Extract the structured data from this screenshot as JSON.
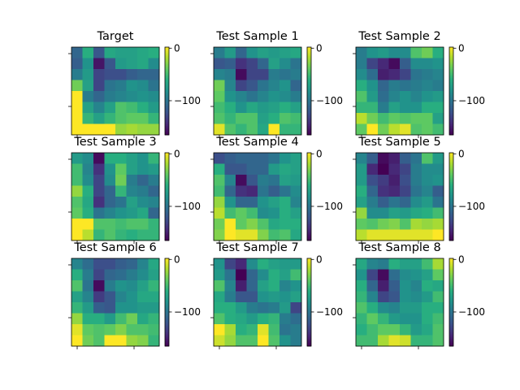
{
  "chart_data": {
    "type": "heatmap",
    "colormap": "viridis",
    "vmin": -165,
    "vmax": 2,
    "colorbar_ticks": [
      0,
      -100
    ],
    "colorbar_tick_labels": [
      "0",
      "−100"
    ],
    "grid": false,
    "panels": [
      {
        "title": "Target",
        "values": [
          [
            -110,
            -60,
            -120,
            -65,
            -70,
            -70,
            -65,
            -60
          ],
          [
            -115,
            -80,
            -155,
            -120,
            -75,
            -70,
            -65,
            -85
          ],
          [
            -95,
            -75,
            -130,
            -125,
            -125,
            -115,
            -110,
            -110
          ],
          [
            -35,
            -70,
            -130,
            -100,
            -95,
            -80,
            -85,
            -100
          ],
          [
            5,
            -95,
            -110,
            -95,
            -90,
            -85,
            -80,
            -85
          ],
          [
            5,
            -70,
            -90,
            -70,
            -45,
            -50,
            -60,
            -75
          ],
          [
            5,
            -55,
            -70,
            -55,
            -45,
            -40,
            -40,
            -55
          ],
          [
            5,
            5,
            5,
            5,
            -25,
            -20,
            -25,
            -25
          ]
        ]
      },
      {
        "title": "Test Sample 1",
        "values": [
          [
            -95,
            -75,
            -110,
            -80,
            -70,
            -75,
            -70,
            -65
          ],
          [
            -120,
            -115,
            -140,
            -130,
            -110,
            -70,
            -85,
            -100
          ],
          [
            -90,
            -95,
            -160,
            -130,
            -130,
            -95,
            -100,
            -95
          ],
          [
            -35,
            -90,
            -130,
            -120,
            -100,
            -90,
            -80,
            -110
          ],
          [
            -40,
            -80,
            -90,
            -100,
            -90,
            -80,
            -85,
            -95
          ],
          [
            -50,
            -60,
            -80,
            -65,
            -75,
            -70,
            -60,
            -70
          ],
          [
            -45,
            -55,
            -45,
            -45,
            -70,
            -60,
            -45,
            -50
          ],
          [
            -5,
            -45,
            -55,
            -45,
            -65,
            5,
            -55,
            -55
          ]
        ]
      },
      {
        "title": "Test Sample 2",
        "values": [
          [
            -95,
            -80,
            -75,
            -85,
            -85,
            -45,
            -35,
            -60
          ],
          [
            -95,
            -130,
            -145,
            -160,
            -115,
            -85,
            -85,
            -80
          ],
          [
            -85,
            -105,
            -150,
            -145,
            -130,
            -100,
            -95,
            -90
          ],
          [
            -60,
            -80,
            -110,
            -95,
            -100,
            -95,
            -90,
            -95
          ],
          [
            -45,
            -75,
            -105,
            -90,
            -80,
            -90,
            -80,
            -75
          ],
          [
            -55,
            -55,
            -95,
            -70,
            -80,
            -80,
            -60,
            -60
          ],
          [
            -15,
            -35,
            -50,
            -40,
            -45,
            -40,
            -40,
            -70
          ],
          [
            -40,
            5,
            -35,
            -15,
            -5,
            -45,
            -40,
            -50
          ]
        ]
      },
      {
        "title": "Test Sample 3",
        "values": [
          [
            -75,
            -85,
            -160,
            -60,
            -60,
            -70,
            -80,
            -55
          ],
          [
            -50,
            -90,
            -140,
            -80,
            -40,
            -70,
            -80,
            -75
          ],
          [
            -50,
            -85,
            -130,
            -85,
            -35,
            -95,
            -110,
            -95
          ],
          [
            -25,
            -60,
            -130,
            -110,
            -55,
            -90,
            -95,
            -110
          ],
          [
            -45,
            -65,
            -140,
            -110,
            -100,
            -70,
            -85,
            -90
          ],
          [
            -40,
            -60,
            -100,
            -90,
            -80,
            -75,
            -65,
            -110
          ],
          [
            5,
            5,
            -45,
            -45,
            -50,
            -45,
            -45,
            -55
          ],
          [
            5,
            -15,
            -55,
            -45,
            -55,
            -60,
            -55,
            -55
          ]
        ]
      },
      {
        "title": "Test Sample 4",
        "values": [
          [
            -125,
            -115,
            -110,
            -110,
            -110,
            -100,
            -80,
            -70
          ],
          [
            -60,
            -120,
            -120,
            -110,
            -110,
            -75,
            -65,
            -70
          ],
          [
            -45,
            -90,
            -160,
            -120,
            -95,
            -100,
            -70,
            -75
          ],
          [
            -50,
            -110,
            -140,
            -145,
            -100,
            -115,
            -100,
            -85
          ],
          [
            -25,
            -80,
            -110,
            -110,
            -80,
            -70,
            -60,
            -90
          ],
          [
            -15,
            -50,
            -40,
            -50,
            -85,
            -80,
            -60,
            -70
          ],
          [
            -35,
            5,
            -40,
            -30,
            -45,
            -65,
            -60,
            -60
          ],
          [
            -30,
            5,
            -5,
            -5,
            -30,
            -50,
            -45,
            -65
          ]
        ]
      },
      {
        "title": "Test Sample 5",
        "values": [
          [
            -90,
            -115,
            -160,
            -150,
            -115,
            -100,
            -45,
            -75
          ],
          [
            -75,
            -145,
            -165,
            -145,
            -130,
            -95,
            -85,
            -85
          ],
          [
            -75,
            -125,
            -135,
            -150,
            -125,
            -95,
            -85,
            -80
          ],
          [
            -60,
            -110,
            -140,
            -145,
            -130,
            -100,
            -90,
            -115
          ],
          [
            -70,
            -95,
            -115,
            -100,
            -110,
            -85,
            -75,
            -100
          ],
          [
            -25,
            -85,
            -85,
            -70,
            -75,
            -65,
            -60,
            -50
          ],
          [
            -40,
            -45,
            -35,
            -30,
            -45,
            -20,
            -25,
            -20
          ],
          [
            -15,
            -5,
            -5,
            -5,
            -5,
            -5,
            -5,
            5
          ]
        ]
      },
      {
        "title": "Test Sample 6",
        "values": [
          [
            -90,
            -105,
            -125,
            -125,
            -115,
            -110,
            -90,
            -65
          ],
          [
            -60,
            -95,
            -130,
            -110,
            -105,
            -95,
            -85,
            -70
          ],
          [
            -45,
            -100,
            -160,
            -95,
            -80,
            -85,
            -70,
            -55
          ],
          [
            -70,
            -90,
            -135,
            -120,
            -90,
            -80,
            -65,
            -65
          ],
          [
            -55,
            -75,
            -115,
            -120,
            -80,
            -80,
            -75,
            -75
          ],
          [
            -25,
            -60,
            -60,
            -75,
            -50,
            -35,
            -65,
            -55
          ],
          [
            -5,
            -40,
            -45,
            -40,
            -30,
            -45,
            -45,
            -50
          ],
          [
            5,
            -35,
            -45,
            5,
            5,
            -25,
            -30,
            -55
          ]
        ]
      },
      {
        "title": "Test Sample 7",
        "values": [
          [
            -80,
            -130,
            -145,
            -85,
            -60,
            -70,
            -75,
            -75
          ],
          [
            -75,
            -100,
            -165,
            -110,
            -85,
            -60,
            -70,
            -50
          ],
          [
            -45,
            -90,
            -150,
            -110,
            -70,
            -60,
            -90,
            -80
          ],
          [
            -65,
            -95,
            -120,
            -120,
            -80,
            -75,
            -80,
            -70
          ],
          [
            -60,
            -60,
            -75,
            -95,
            -100,
            -95,
            -75,
            -130
          ],
          [
            -45,
            -60,
            -65,
            -75,
            -60,
            -55,
            -95,
            -105
          ],
          [
            5,
            -20,
            -60,
            -55,
            -5,
            -50,
            -100,
            -95
          ],
          [
            -10,
            -25,
            -45,
            -45,
            5,
            -45,
            -80,
            -95
          ]
        ]
      },
      {
        "title": "Test Sample 8",
        "values": [
          [
            -65,
            -90,
            -95,
            -60,
            -70,
            -70,
            -50,
            -20
          ],
          [
            -80,
            -130,
            -160,
            -105,
            -85,
            -80,
            -70,
            -40
          ],
          [
            -60,
            -110,
            -150,
            -115,
            -80,
            -90,
            -60,
            -65
          ],
          [
            -55,
            -90,
            -130,
            -120,
            -80,
            -85,
            -75,
            -50
          ],
          [
            -45,
            -60,
            -85,
            -90,
            -75,
            -75,
            -60,
            -60
          ],
          [
            -55,
            -40,
            -55,
            -75,
            -80,
            -80,
            -60,
            -50
          ],
          [
            -60,
            -50,
            -40,
            -40,
            -55,
            -75,
            -65,
            -45
          ],
          [
            -50,
            -50,
            -20,
            -5,
            -10,
            -55,
            -55,
            -45
          ]
        ]
      }
    ]
  }
}
